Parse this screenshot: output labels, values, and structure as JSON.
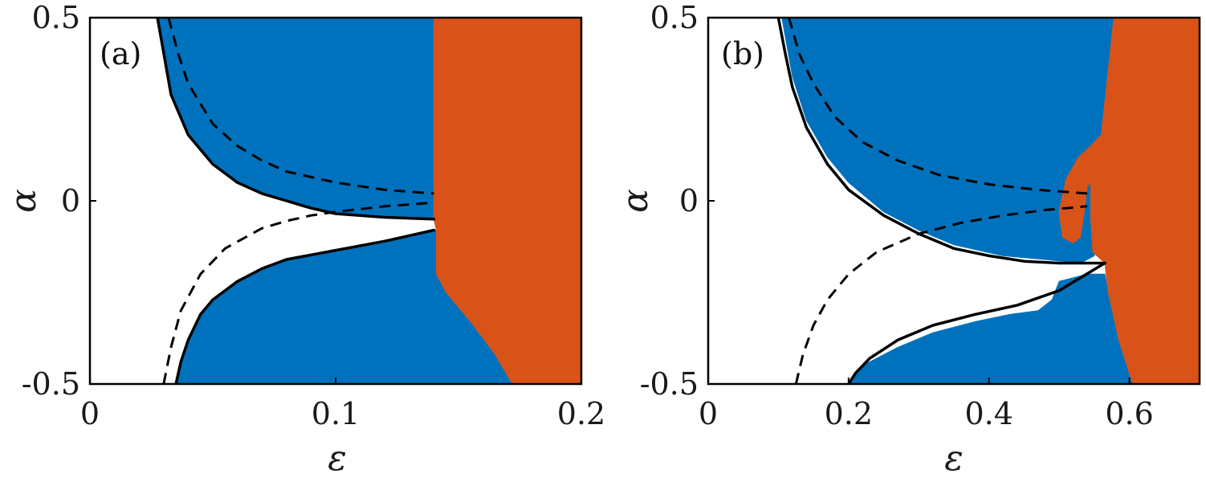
{
  "colors": {
    "region_blue": "#0072BD",
    "region_orange": "#D95319",
    "curve": "#000000",
    "background": "#FFFFFF"
  },
  "chart_data": [
    {
      "type": "area",
      "panel_label": "(a)",
      "xlabel": "ε",
      "ylabel": "α",
      "xlim": [
        0,
        0.2
      ],
      "ylim": [
        -0.5,
        0.5
      ],
      "xticks": [
        0,
        0.1,
        0.2
      ],
      "xtick_labels": [
        "0",
        "0.1",
        "0.2"
      ],
      "yticks": [
        -0.5,
        0,
        0.5
      ],
      "ytick_labels": [
        "-0.5",
        "0",
        "0.5"
      ],
      "grid": false,
      "regions": [
        {
          "color": "blue",
          "polygon": [
            [
              0.0275,
              0.5
            ],
            [
              0.033,
              0.29
            ],
            [
              0.04,
              0.18
            ],
            [
              0.05,
              0.1
            ],
            [
              0.06,
              0.05
            ],
            [
              0.07,
              0.02
            ],
            [
              0.08,
              0.0
            ],
            [
              0.09,
              -0.02
            ],
            [
              0.1,
              -0.035
            ],
            [
              0.12,
              -0.045
            ],
            [
              0.14,
              -0.05
            ],
            [
              0.14,
              0.0
            ],
            [
              0.14,
              0.5
            ]
          ]
        },
        {
          "color": "blue",
          "polygon": [
            [
              0.035,
              -0.5
            ],
            [
              0.037,
              -0.44
            ],
            [
              0.04,
              -0.38
            ],
            [
              0.045,
              -0.31
            ],
            [
              0.05,
              -0.27
            ],
            [
              0.06,
              -0.22
            ],
            [
              0.07,
              -0.185
            ],
            [
              0.08,
              -0.16
            ],
            [
              0.1,
              -0.135
            ],
            [
              0.12,
              -0.11
            ],
            [
              0.14,
              -0.08
            ],
            [
              0.141,
              -0.08
            ],
            [
              0.141,
              -0.2
            ],
            [
              0.145,
              -0.25
            ],
            [
              0.155,
              -0.33
            ],
            [
              0.165,
              -0.42
            ],
            [
              0.172,
              -0.5
            ]
          ]
        },
        {
          "color": "orange",
          "polygon": [
            [
              0.1475,
              0.5
            ],
            [
              0.2,
              0.5
            ],
            [
              0.2,
              -0.5
            ],
            [
              0.172,
              -0.5
            ],
            [
              0.165,
              -0.42
            ],
            [
              0.155,
              -0.33
            ],
            [
              0.145,
              -0.25
            ],
            [
              0.141,
              -0.2
            ],
            [
              0.141,
              -0.08
            ],
            [
              0.14,
              -0.05
            ],
            [
              0.14,
              0.08
            ],
            [
              0.14,
              0.5
            ]
          ]
        }
      ],
      "curves": [
        {
          "style": "solid",
          "points": [
            [
              0.0275,
              0.5
            ],
            [
              0.033,
              0.29
            ],
            [
              0.04,
              0.18
            ],
            [
              0.05,
              0.1
            ],
            [
              0.06,
              0.05
            ],
            [
              0.07,
              0.02
            ],
            [
              0.08,
              0.0
            ],
            [
              0.09,
              -0.02
            ],
            [
              0.1,
              -0.035
            ],
            [
              0.12,
              -0.045
            ],
            [
              0.14,
              -0.05
            ]
          ]
        },
        {
          "style": "solid",
          "points": [
            [
              0.035,
              -0.5
            ],
            [
              0.037,
              -0.44
            ],
            [
              0.04,
              -0.38
            ],
            [
              0.045,
              -0.31
            ],
            [
              0.05,
              -0.27
            ],
            [
              0.06,
              -0.22
            ],
            [
              0.07,
              -0.185
            ],
            [
              0.08,
              -0.16
            ],
            [
              0.1,
              -0.135
            ],
            [
              0.12,
              -0.11
            ],
            [
              0.14,
              -0.08
            ]
          ]
        },
        {
          "style": "dashed",
          "points": [
            [
              0.032,
              0.5
            ],
            [
              0.036,
              0.4
            ],
            [
              0.04,
              0.32
            ],
            [
              0.05,
              0.21
            ],
            [
              0.06,
              0.15
            ],
            [
              0.07,
              0.11
            ],
            [
              0.08,
              0.08
            ],
            [
              0.1,
              0.05
            ],
            [
              0.12,
              0.03
            ],
            [
              0.14,
              0.02
            ]
          ]
        },
        {
          "style": "dashed",
          "points": [
            [
              0.03,
              -0.5
            ],
            [
              0.033,
              -0.4
            ],
            [
              0.037,
              -0.3
            ],
            [
              0.045,
              -0.2
            ],
            [
              0.055,
              -0.13
            ],
            [
              0.07,
              -0.075
            ],
            [
              0.08,
              -0.055
            ],
            [
              0.09,
              -0.04
            ],
            [
              0.1,
              -0.03
            ],
            [
              0.12,
              -0.015
            ],
            [
              0.14,
              -0.005
            ]
          ]
        }
      ]
    },
    {
      "type": "area",
      "panel_label": "(b)",
      "xlabel": "ε",
      "ylabel": "α",
      "xlim": [
        0,
        0.7
      ],
      "ylim": [
        -0.5,
        0.5
      ],
      "xticks": [
        0,
        0.2,
        0.4,
        0.6
      ],
      "xtick_labels": [
        "0",
        "0.2",
        "0.4",
        "0.6"
      ],
      "yticks": [
        -0.5,
        0,
        0.5
      ],
      "ytick_labels": [
        "-0.5",
        "0",
        "0.5"
      ],
      "grid": false,
      "regions": [
        {
          "color": "blue",
          "polygon": [
            [
              0.105,
              0.5
            ],
            [
              0.12,
              0.34
            ],
            [
              0.14,
              0.22
            ],
            [
              0.17,
              0.12
            ],
            [
              0.2,
              0.05
            ],
            [
              0.25,
              -0.03
            ],
            [
              0.3,
              -0.08
            ],
            [
              0.35,
              -0.12
            ],
            [
              0.42,
              -0.15
            ],
            [
              0.48,
              -0.16
            ],
            [
              0.53,
              -0.17
            ],
            [
              0.55,
              -0.15
            ],
            [
              0.56,
              0.0
            ],
            [
              0.58,
              0.5
            ]
          ]
        },
        {
          "color": "blue",
          "polygon": [
            [
              0.2,
              -0.5
            ],
            [
              0.22,
              -0.45
            ],
            [
              0.27,
              -0.4
            ],
            [
              0.32,
              -0.36
            ],
            [
              0.38,
              -0.33
            ],
            [
              0.43,
              -0.31
            ],
            [
              0.47,
              -0.3
            ],
            [
              0.49,
              -0.27
            ],
            [
              0.5,
              -0.22
            ],
            [
              0.54,
              -0.2
            ],
            [
              0.565,
              -0.2
            ],
            [
              0.57,
              -0.25
            ],
            [
              0.585,
              -0.38
            ],
            [
              0.605,
              -0.5
            ]
          ]
        },
        {
          "color": "orange",
          "polygon": [
            [
              0.578,
              0.5
            ],
            [
              0.7,
              0.5
            ],
            [
              0.7,
              -0.5
            ],
            [
              0.605,
              -0.5
            ],
            [
              0.585,
              -0.38
            ],
            [
              0.57,
              -0.25
            ],
            [
              0.565,
              -0.17
            ],
            [
              0.548,
              -0.14
            ],
            [
              0.545,
              -0.05
            ],
            [
              0.545,
              0.05
            ],
            [
              0.54,
              0.04
            ],
            [
              0.535,
              -0.04
            ],
            [
              0.53,
              -0.1
            ],
            [
              0.52,
              -0.115
            ],
            [
              0.505,
              -0.1
            ],
            [
              0.5,
              -0.03
            ],
            [
              0.51,
              0.06
            ],
            [
              0.528,
              0.12
            ],
            [
              0.545,
              0.15
            ],
            [
              0.56,
              0.18
            ]
          ]
        }
      ],
      "curves": [
        {
          "style": "solid",
          "points": [
            [
              0.1,
              0.5
            ],
            [
              0.11,
              0.4
            ],
            [
              0.12,
              0.31
            ],
            [
              0.14,
              0.2
            ],
            [
              0.17,
              0.1
            ],
            [
              0.2,
              0.03
            ],
            [
              0.25,
              -0.04
            ],
            [
              0.3,
              -0.09
            ],
            [
              0.35,
              -0.13
            ],
            [
              0.4,
              -0.15
            ],
            [
              0.45,
              -0.165
            ],
            [
              0.5,
              -0.17
            ],
            [
              0.565,
              -0.17
            ]
          ]
        },
        {
          "style": "solid",
          "points": [
            [
              0.2,
              -0.5
            ],
            [
              0.21,
              -0.47
            ],
            [
              0.23,
              -0.43
            ],
            [
              0.27,
              -0.38
            ],
            [
              0.32,
              -0.34
            ],
            [
              0.38,
              -0.31
            ],
            [
              0.44,
              -0.285
            ],
            [
              0.5,
              -0.245
            ],
            [
              0.565,
              -0.17
            ]
          ]
        },
        {
          "style": "dashed",
          "points": [
            [
              0.115,
              0.5
            ],
            [
              0.13,
              0.4
            ],
            [
              0.15,
              0.32
            ],
            [
              0.18,
              0.23
            ],
            [
              0.22,
              0.16
            ],
            [
              0.27,
              0.11
            ],
            [
              0.33,
              0.07
            ],
            [
              0.4,
              0.045
            ],
            [
              0.47,
              0.03
            ],
            [
              0.54,
              0.02
            ]
          ]
        },
        {
          "style": "dashed",
          "points": [
            [
              0.125,
              -0.5
            ],
            [
              0.135,
              -0.42
            ],
            [
              0.15,
              -0.34
            ],
            [
              0.17,
              -0.27
            ],
            [
              0.2,
              -0.2
            ],
            [
              0.24,
              -0.14
            ],
            [
              0.3,
              -0.09
            ],
            [
              0.36,
              -0.06
            ],
            [
              0.42,
              -0.04
            ],
            [
              0.48,
              -0.025
            ],
            [
              0.54,
              -0.015
            ]
          ]
        }
      ]
    }
  ]
}
